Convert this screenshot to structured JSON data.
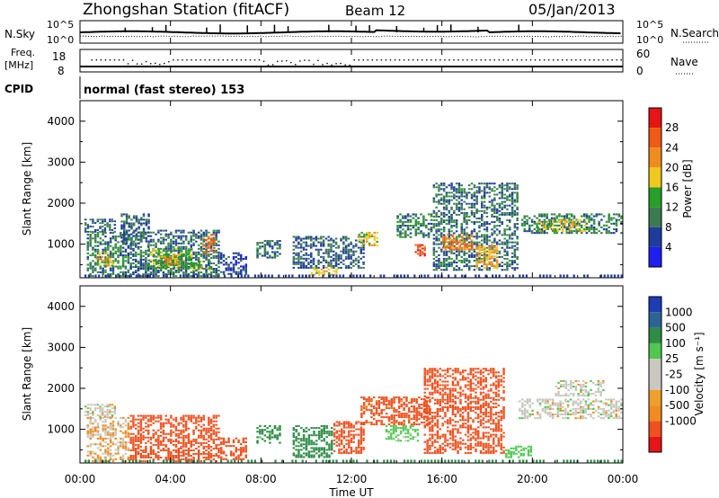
{
  "header": {
    "station": "Zhongshan Station (fitACF)",
    "beam": "Beam 12",
    "date": "05/Jan/2013"
  },
  "top_panels": {
    "nsky_label": "N.Sky",
    "nsky_ticks": [
      "10^5",
      "10^0"
    ],
    "nsearch_label": "N.Search",
    "nsearch_ticks": [
      "10^5",
      "10^0"
    ],
    "freq_label": "Freq.",
    "freq_unit": "[MHz]",
    "freq_ticks": [
      "18",
      "8"
    ],
    "nave_label": "Nave",
    "nave_ticks": [
      "60",
      "0"
    ],
    "cpid_label": "CPID",
    "cpid_text": "normal (fast stereo) 153"
  },
  "colors": {
    "power_scale": [
      "#1e1ef0",
      "#1e3c9c",
      "#3c7a52",
      "#26a026",
      "#f0c81e",
      "#f08c1e",
      "#f05a14",
      "#e61414"
    ],
    "velocity_scale": [
      "#e61414",
      "#f0501e",
      "#f08c1e",
      "#f0a028",
      "#c8c8c0",
      "#c8c8c0",
      "#50c850",
      "#2d8c46",
      "#2d6496",
      "#1e3cb4"
    ]
  },
  "chart_data": [
    {
      "type": "heatmap",
      "name": "power",
      "xlabel": "Time UT",
      "ylabel": "Slant Range [km]",
      "xlim": [
        0,
        24
      ],
      "ylim": [
        180,
        4500
      ],
      "x_ticks": [
        "00:00",
        "04:00",
        "08:00",
        "12:00",
        "16:00",
        "20:00",
        "00:00"
      ],
      "y_ticks": [
        1000,
        2000,
        3000,
        4000
      ],
      "colorbar_label": "Power [dB]",
      "colorbar_ticks": [
        4,
        8,
        12,
        16,
        20,
        24,
        28
      ],
      "patches": [
        {
          "t0": 0.2,
          "t1": 1.6,
          "r0": 1280,
          "r1": 1620,
          "v": 8
        },
        {
          "t0": 0.3,
          "t1": 2.2,
          "r0": 200,
          "r1": 1300,
          "v": 10
        },
        {
          "t0": 0.7,
          "t1": 1.5,
          "r0": 450,
          "r1": 800,
          "v": 18
        },
        {
          "t0": 1.8,
          "t1": 3.1,
          "r0": 1000,
          "r1": 1750,
          "v": 8
        },
        {
          "t0": 2.2,
          "t1": 6.2,
          "r0": 200,
          "r1": 1350,
          "v": 9
        },
        {
          "t0": 3.0,
          "t1": 5.0,
          "r0": 400,
          "r1": 900,
          "v": 14
        },
        {
          "t0": 3.6,
          "t1": 4.4,
          "r0": 500,
          "r1": 750,
          "v": 22
        },
        {
          "t0": 5.4,
          "t1": 6.0,
          "r0": 750,
          "r1": 1250,
          "v": 24
        },
        {
          "t0": 5.0,
          "t1": 5.8,
          "r0": 350,
          "r1": 600,
          "v": 16
        },
        {
          "t0": 6.2,
          "t1": 7.4,
          "r0": 250,
          "r1": 800,
          "v": 6
        },
        {
          "t0": 7.8,
          "t1": 8.9,
          "r0": 650,
          "r1": 1100,
          "v": 9
        },
        {
          "t0": 9.4,
          "t1": 12.6,
          "r0": 400,
          "r1": 1200,
          "v": 8
        },
        {
          "t0": 10.2,
          "t1": 11.4,
          "r0": 230,
          "r1": 450,
          "v": 19
        },
        {
          "t0": 12.3,
          "t1": 13.2,
          "r0": 950,
          "r1": 1300,
          "v": 18
        },
        {
          "t0": 14.0,
          "t1": 15.6,
          "r0": 1150,
          "r1": 1750,
          "v": 10
        },
        {
          "t0": 14.8,
          "t1": 15.3,
          "r0": 700,
          "r1": 1000,
          "v": 27
        },
        {
          "t0": 15.6,
          "t1": 19.4,
          "r0": 350,
          "r1": 2500,
          "v": 9
        },
        {
          "t0": 16.0,
          "t1": 17.4,
          "r0": 850,
          "r1": 1250,
          "v": 23
        },
        {
          "t0": 17.5,
          "t1": 18.5,
          "r0": 400,
          "r1": 1000,
          "v": 20
        },
        {
          "t0": 19.5,
          "t1": 24.0,
          "r0": 1250,
          "r1": 1750,
          "v": 10
        },
        {
          "t0": 20.2,
          "t1": 22.4,
          "r0": 1300,
          "r1": 1600,
          "v": 18
        }
      ]
    },
    {
      "type": "heatmap",
      "name": "velocity",
      "xlabel": "Time UT",
      "ylabel": "Slant Range [km]",
      "xlim": [
        0,
        24
      ],
      "ylim": [
        180,
        4500
      ],
      "x_ticks": [
        "00:00",
        "04:00",
        "08:00",
        "12:00",
        "16:00",
        "20:00",
        "00:00"
      ],
      "y_ticks": [
        1000,
        2000,
        3000,
        4000
      ],
      "colorbar_label": "Velocity [m s⁻¹]",
      "colorbar_ticks": [
        "1000",
        "500",
        "100",
        "25",
        "-25",
        "-100",
        "-500",
        "-1000"
      ],
      "patches": [
        {
          "t0": 0.2,
          "t1": 1.6,
          "r0": 1280,
          "r1": 1620,
          "v": 0
        },
        {
          "t0": 0.3,
          "t1": 2.2,
          "r0": 200,
          "r1": 1300,
          "v": -30
        },
        {
          "t0": 2.2,
          "t1": 6.2,
          "r0": 200,
          "r1": 1350,
          "v": -300
        },
        {
          "t0": 6.2,
          "t1": 7.4,
          "r0": 250,
          "r1": 800,
          "v": -200
        },
        {
          "t0": 7.8,
          "t1": 8.9,
          "r0": 650,
          "r1": 1100,
          "v": 150
        },
        {
          "t0": 9.4,
          "t1": 11.2,
          "r0": 300,
          "r1": 1100,
          "v": 200
        },
        {
          "t0": 11.2,
          "t1": 12.6,
          "r0": 400,
          "r1": 1200,
          "v": -300
        },
        {
          "t0": 12.4,
          "t1": 15.5,
          "r0": 1100,
          "r1": 1800,
          "v": -150
        },
        {
          "t0": 13.5,
          "t1": 15.0,
          "r0": 700,
          "r1": 1100,
          "v": 50
        },
        {
          "t0": 15.2,
          "t1": 18.8,
          "r0": 400,
          "r1": 2500,
          "v": -300
        },
        {
          "t0": 18.8,
          "t1": 20.0,
          "r0": 300,
          "r1": 600,
          "v": 60
        },
        {
          "t0": 19.4,
          "t1": 24.0,
          "r0": 1250,
          "r1": 1750,
          "v": 0
        },
        {
          "t0": 21.0,
          "t1": 23.2,
          "r0": 1800,
          "r1": 2200,
          "v": 0
        }
      ]
    }
  ],
  "traces": {
    "nsky_values": [
      4.0,
      4.2,
      4.1,
      4.4,
      4.3,
      4.6,
      4.2,
      4.4,
      4.7,
      4.5
    ],
    "freq_value_mhz": 12,
    "nave_value": 30
  }
}
